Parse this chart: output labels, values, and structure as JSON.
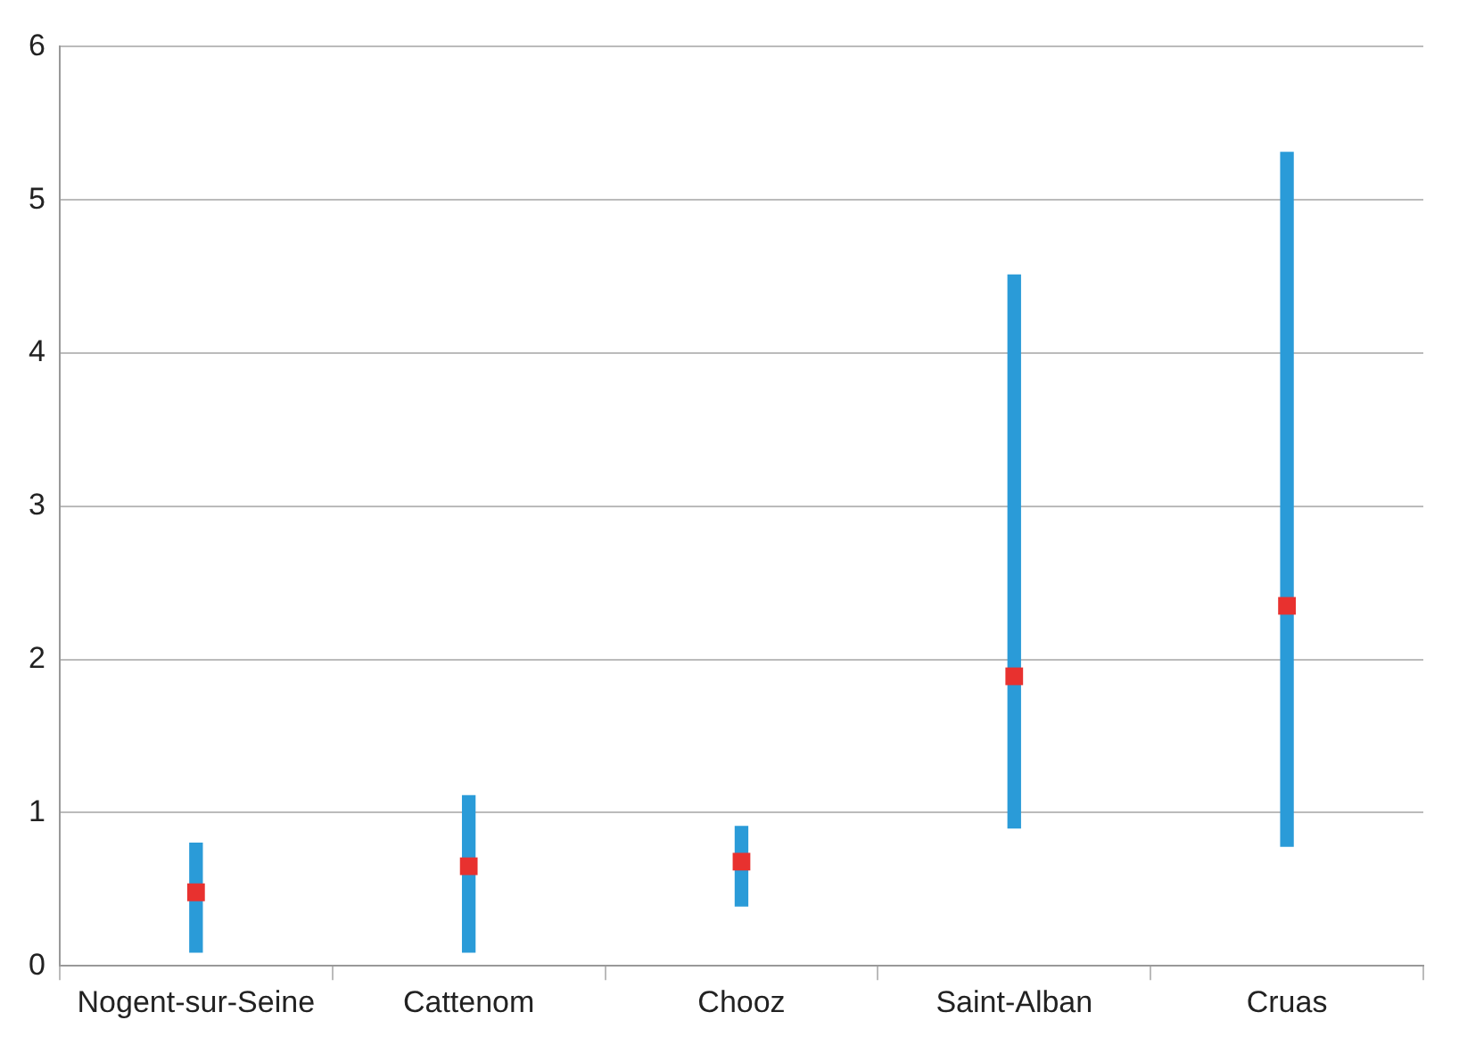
{
  "chart_data": {
    "type": "bar",
    "categories": [
      "Nogent-sur-Seine",
      "Cattenom",
      "Chooz",
      "Saint-Alban",
      "Cruas"
    ],
    "series": [
      {
        "color": "#2a9bd8",
        "base": [
          0.09,
          0.09,
          0.39,
          0.9,
          0.78
        ],
        "values": [
          0.71,
          1.02,
          0.52,
          3.61,
          4.53
        ]
      },
      {
        "type": "scatter",
        "color": "#e8312f",
        "marker": "square",
        "x": [
          "Nogent-sur-Seine",
          "Cattenom",
          "Chooz",
          "Saint-Alban",
          "Cruas"
        ],
        "values": [
          0.48,
          0.65,
          0.68,
          1.89,
          2.35
        ]
      }
    ],
    "ylim": [
      0,
      6
    ],
    "yticks": [
      0,
      1,
      2,
      3,
      4,
      5,
      6
    ],
    "grid": "y",
    "legend": false
  }
}
